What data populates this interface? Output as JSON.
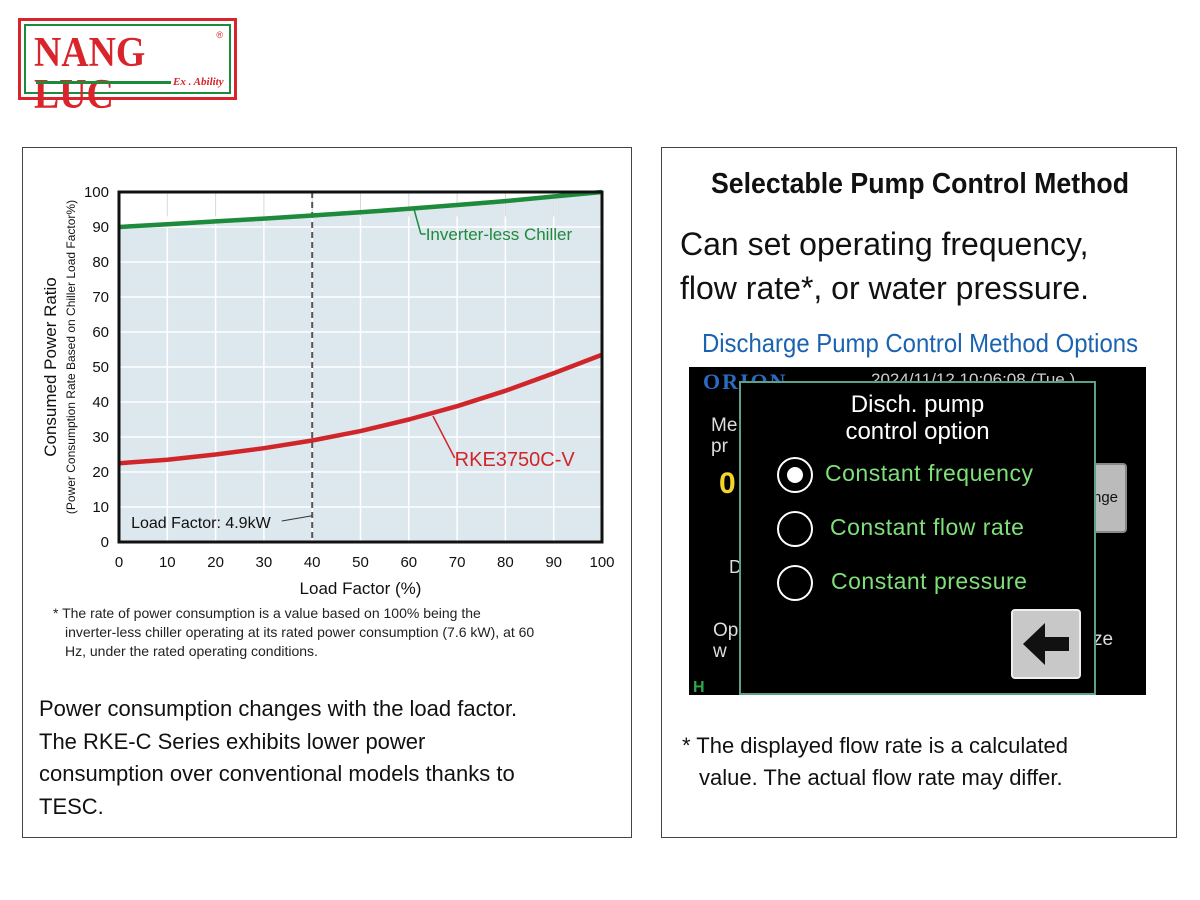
{
  "logo": {
    "name": "NANG LUC",
    "tagline": "Ex . Ability",
    "registered": "®"
  },
  "chart_data": {
    "type": "line",
    "ylabel": "Consumed Power Ratio",
    "ylabel_sub": "(Power Consumption Rate Based on Chiller Load Factor%)",
    "xlabel": "Load Factor (%)",
    "x_ticks": [
      0,
      10,
      20,
      30,
      40,
      50,
      60,
      70,
      80,
      90,
      100
    ],
    "y_ticks": [
      0,
      10,
      20,
      30,
      40,
      50,
      60,
      70,
      80,
      90,
      100
    ],
    "xlim": [
      0,
      100
    ],
    "ylim": [
      0,
      100
    ],
    "grid": true,
    "series": [
      {
        "name": "Inverter-less Chiller",
        "color": "#1e8a3b",
        "x": [
          0,
          10,
          20,
          30,
          40,
          50,
          60,
          70,
          80,
          90,
          100
        ],
        "values": [
          90,
          90.8,
          91.6,
          92.4,
          93.3,
          94.2,
          95.2,
          96.3,
          97.4,
          98.7,
          100
        ]
      },
      {
        "name": "RKE3750C-V",
        "color": "#d0262a",
        "x": [
          0,
          10,
          20,
          30,
          40,
          50,
          60,
          70,
          80,
          90,
          100
        ],
        "values": [
          22.5,
          23.5,
          25,
          26.8,
          29,
          31.7,
          35,
          38.8,
          43.2,
          48.2,
          53.5
        ]
      }
    ],
    "reference_line": {
      "x": 40,
      "label": "Load Factor: 4.9kW"
    }
  },
  "left": {
    "footnote": [
      "* The rate of power consumption is a value based on 100% being the",
      "inverter-less chiller operating at its rated power consumption (7.6 kW), at 60",
      "Hz, under the rated operating conditions."
    ],
    "paragraph": [
      "Power consumption changes with the load factor.",
      "The RKE-C Series exhibits lower power",
      "consumption over conventional models thanks to",
      "TESC."
    ]
  },
  "right": {
    "title": "Selectable Pump Control Method",
    "subtitle": [
      "Can set operating frequency,",
      "flow rate*, or water pressure."
    ],
    "options_heading": "Discharge Pump Control Method Options",
    "screen": {
      "brand": "ORION",
      "datetime": "2024/11/12 10:06:08 (Tue.)",
      "bg_left_top": [
        "Me",
        "pr"
      ],
      "bg_value": "0",
      "bg_d": "D",
      "bg_left_bottom": [
        "Op",
        "w"
      ],
      "bg_home": "H",
      "bg_right_button": "nge",
      "bg_right_text": "ze",
      "dialog_title": [
        "Disch. pump",
        "control option"
      ],
      "options": [
        {
          "label": "Constant frequency",
          "selected": true
        },
        {
          "label": "Constant flow rate",
          "selected": false
        },
        {
          "label": "Constant pressure",
          "selected": false
        }
      ],
      "back_icon": "left-arrow-icon"
    },
    "note": [
      "* The displayed flow rate is a calculated",
      "value. The actual flow rate may differ."
    ]
  }
}
